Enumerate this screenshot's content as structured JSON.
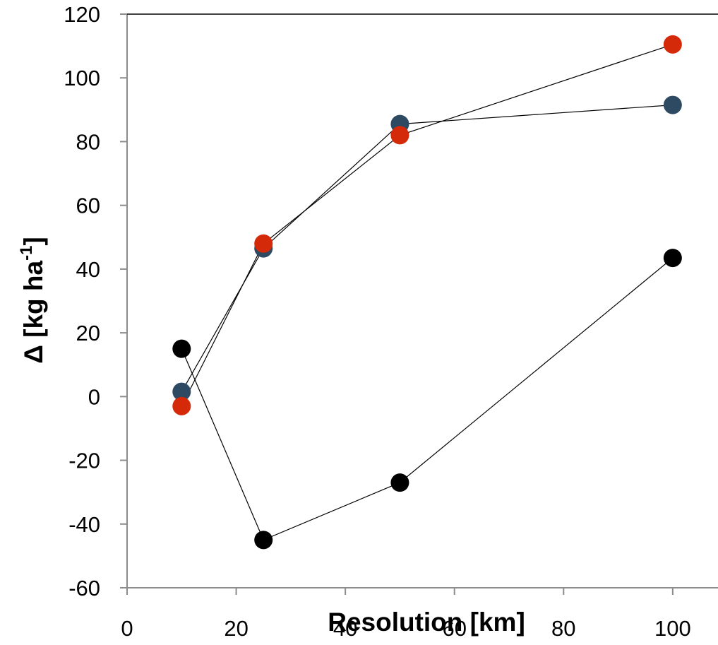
{
  "chart_data": {
    "type": "scatter",
    "title": "",
    "xlabel": "Resolution [km]",
    "ylabel": {
      "main": "Δ [kg ha",
      "superscript": "-1",
      "close": "]"
    },
    "xlim": [
      0,
      110
    ],
    "ylim": [
      -60,
      120
    ],
    "xticks": [
      0,
      20,
      40,
      60,
      80,
      100
    ],
    "yticks": [
      -60,
      -40,
      -20,
      0,
      20,
      40,
      60,
      80,
      100,
      120
    ],
    "xtick_labels": [
      "0",
      "20",
      "40",
      "60",
      "80",
      "100"
    ],
    "ytick_labels": [
      "-60",
      "-40",
      "-20",
      "0",
      "20",
      "40",
      "60",
      "80",
      "100",
      "120"
    ],
    "grid": false,
    "series": [
      {
        "color": "#2e4a62",
        "x": [
          10,
          25,
          50,
          100
        ],
        "y": [
          1.5,
          46.5,
          85.5,
          91.5
        ]
      },
      {
        "color": "#d42a0a",
        "x": [
          10,
          25,
          50,
          100
        ],
        "y": [
          -3,
          48,
          82,
          110.5
        ]
      },
      {
        "color": "#000000",
        "x": [
          10,
          25,
          50,
          100
        ],
        "y": [
          15,
          -45,
          -27,
          43.5
        ]
      }
    ]
  }
}
